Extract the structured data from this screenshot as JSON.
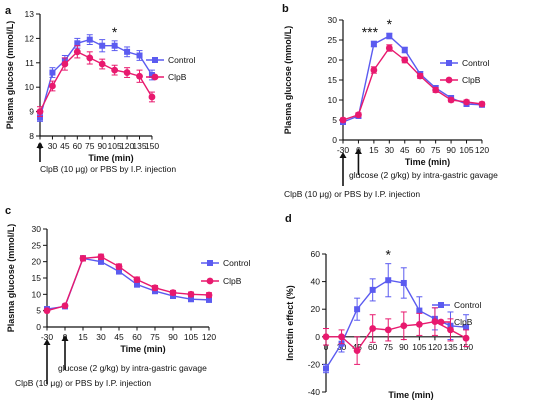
{
  "colors": {
    "control": "#5b5bf0",
    "clpb": "#e8196e",
    "axis": "#111111"
  },
  "chart_data": [
    {
      "type": "line",
      "panel_label": "a",
      "ylabel": "Plasma glucose (mmol/L)",
      "xlabel": "Time (min)",
      "x": [
        0,
        30,
        45,
        60,
        75,
        90,
        105,
        120,
        135,
        150
      ],
      "x_ticks": [
        "0",
        "30",
        "45",
        "60",
        "75",
        "90",
        "105",
        "120",
        "135",
        "150"
      ],
      "ylim": [
        8,
        13
      ],
      "y_ticks": [
        "8",
        "9",
        "10",
        "11",
        "12",
        "13"
      ],
      "legend": "top-right",
      "series": [
        {
          "name": "Control",
          "color_key": "control",
          "marker": "square",
          "values": [
            8.75,
            10.6,
            11.1,
            11.8,
            11.95,
            11.7,
            11.7,
            11.45,
            11.3,
            10.5
          ],
          "errors": [
            0.15,
            0.2,
            0.2,
            0.2,
            0.2,
            0.25,
            0.2,
            0.2,
            0.2,
            0.2
          ]
        },
        {
          "name": "ClpB",
          "color_key": "clpb",
          "marker": "circle",
          "values": [
            9.0,
            10.05,
            10.95,
            11.45,
            11.2,
            10.95,
            10.7,
            10.6,
            10.45,
            9.6
          ],
          "errors": [
            0.2,
            0.2,
            0.25,
            0.25,
            0.25,
            0.2,
            0.2,
            0.2,
            0.25,
            0.2
          ]
        }
      ],
      "stars": [
        {
          "x": 105,
          "text": "*"
        }
      ],
      "arrows": [
        {
          "x": 0,
          "label": "ClpB (10 μg) or PBS by I.P. injection"
        }
      ]
    },
    {
      "type": "line",
      "panel_label": "b",
      "ylabel": "Plasma glucose (mmol/L)",
      "xlabel": "Time (min)",
      "x": [
        -30,
        0,
        15,
        30,
        45,
        60,
        75,
        90,
        105,
        120
      ],
      "x_ticks": [
        "-30",
        "0",
        "15",
        "30",
        "45",
        "60",
        "75",
        "90",
        "105",
        "120"
      ],
      "ylim": [
        0,
        30
      ],
      "y_ticks": [
        "0",
        "5",
        "10",
        "15",
        "20",
        "25",
        "30"
      ],
      "legend": "top-right",
      "series": [
        {
          "name": "Control",
          "color_key": "control",
          "marker": "square",
          "values": [
            4.5,
            6.0,
            24.0,
            26.0,
            22.5,
            16.5,
            13.0,
            10.5,
            9.0,
            8.8
          ],
          "errors": [
            0.5,
            0.5,
            0.7,
            0.7,
            0.7,
            0.6,
            0.6,
            0.5,
            0.5,
            0.5
          ]
        },
        {
          "name": "ClpB",
          "color_key": "clpb",
          "marker": "circle",
          "values": [
            5.0,
            6.3,
            17.5,
            23.0,
            20.0,
            16.0,
            12.5,
            10.0,
            9.5,
            9.0
          ],
          "errors": [
            0.5,
            0.5,
            0.8,
            0.8,
            0.7,
            0.6,
            0.6,
            0.5,
            0.5,
            0.5
          ]
        }
      ],
      "stars": [
        {
          "x": 15,
          "text": "***"
        },
        {
          "x": 30,
          "text": "*"
        }
      ],
      "arrows": [
        {
          "x": 0,
          "label": "glucose (2 g/kg) by intra-gastric gavage"
        },
        {
          "x": -30,
          "label": "ClpB (10 μg) or PBS by I.P. injection"
        }
      ]
    },
    {
      "type": "line",
      "panel_label": "c",
      "ylabel": "Plasma glucose (mmol/L)",
      "xlabel": "Time (min)",
      "x": [
        -30,
        0,
        15,
        30,
        45,
        60,
        75,
        90,
        105,
        120
      ],
      "x_ticks": [
        "-30",
        "0",
        "15",
        "30",
        "45",
        "60",
        "75",
        "90",
        "105",
        "120"
      ],
      "ylim": [
        0,
        30
      ],
      "y_ticks": [
        "0",
        "5",
        "10",
        "15",
        "20",
        "25",
        "30"
      ],
      "legend": "top-right",
      "series": [
        {
          "name": "Control",
          "color_key": "control",
          "marker": "square",
          "values": [
            5.5,
            6.3,
            21.0,
            20.0,
            17.0,
            13.0,
            11.0,
            9.5,
            8.5,
            8.3
          ],
          "errors": [
            0.4,
            0.4,
            0.8,
            0.8,
            0.8,
            0.8,
            0.8,
            0.7,
            0.7,
            0.7
          ]
        },
        {
          "name": "ClpB",
          "color_key": "clpb",
          "marker": "circle",
          "values": [
            5.0,
            6.5,
            21.0,
            21.5,
            18.5,
            14.5,
            12.0,
            10.5,
            10.0,
            9.8
          ],
          "errors": [
            0.4,
            0.4,
            0.8,
            0.8,
            0.8,
            0.8,
            0.7,
            0.7,
            0.7,
            0.7
          ]
        }
      ],
      "stars": [],
      "arrows": [
        {
          "x": 0,
          "label": "glucose (2 g/kg) by intra-gastric gavage"
        },
        {
          "x": -30,
          "label": "ClpB (10 μg) or PBS by I.P. injection"
        }
      ]
    },
    {
      "type": "line",
      "panel_label": "d",
      "ylabel": "Incretin effect (%)",
      "xlabel": "Time (min)",
      "x": [
        0,
        30,
        45,
        60,
        75,
        90,
        105,
        120,
        135,
        150
      ],
      "x_ticks": [
        "0",
        "30",
        "45",
        "60",
        "75",
        "90",
        "105",
        "120",
        "135",
        "150"
      ],
      "ylim": [
        -40,
        60
      ],
      "y_ticks": [
        "-40",
        "-20",
        "0",
        "20",
        "40",
        "60"
      ],
      "legend": "bottom-right",
      "series": [
        {
          "name": "Control",
          "color_key": "control",
          "marker": "square",
          "values": [
            -23,
            -5,
            20,
            34,
            41,
            39,
            19,
            13,
            8,
            7
          ],
          "errors": [
            3,
            6,
            8,
            8,
            12,
            11,
            10,
            8,
            10,
            9
          ]
        },
        {
          "name": "ClpB",
          "color_key": "clpb",
          "marker": "circle",
          "values": [
            0,
            0,
            -10,
            6,
            5,
            8,
            9,
            11,
            5,
            -1
          ],
          "errors": [
            6,
            5,
            10,
            10,
            8,
            10,
            8,
            10,
            8,
            6
          ]
        }
      ],
      "stars": [
        {
          "x": 75,
          "text": "*"
        }
      ],
      "arrows": []
    }
  ]
}
